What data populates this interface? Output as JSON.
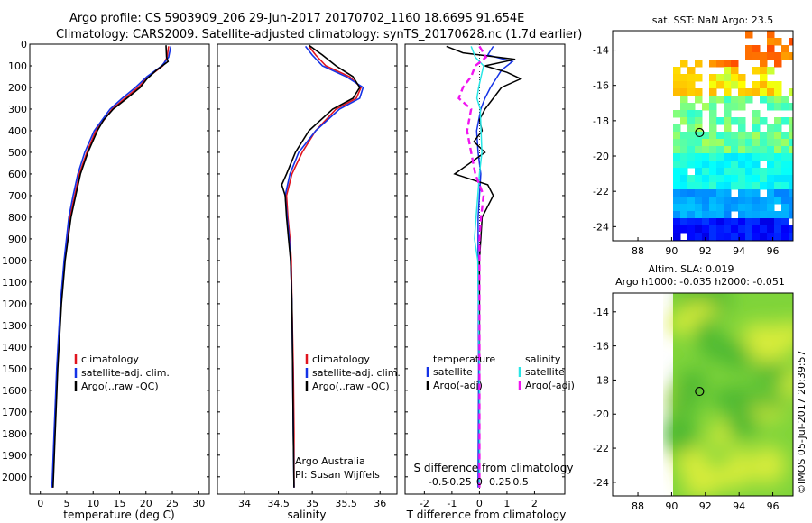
{
  "header": {
    "line1": "Argo profile: CS 5903909_206 29-Jun-2017 20170702_1160 18.669S 91.654E",
    "line2": "Climatology: CARS2009. Satellite-adjusted climatology: synTS_20170628.nc (1.7d earlier)"
  },
  "colors": {
    "red": "#e0141e",
    "blue": "#1432e6",
    "black": "#000000",
    "cyan": "#28e6e6",
    "magenta": "#f014f0"
  },
  "chart_data": [
    {
      "id": "temperature",
      "type": "line",
      "xlabel": "temperature (deg C)",
      "xlim": [
        -2,
        32
      ],
      "xticks": [
        0,
        5,
        10,
        15,
        20,
        25,
        30
      ],
      "ylim": [
        0,
        2080
      ],
      "yticks": [
        0,
        100,
        200,
        300,
        400,
        500,
        600,
        700,
        800,
        900,
        1000,
        1100,
        1200,
        1300,
        1400,
        1500,
        1600,
        1700,
        1800,
        1900,
        2000
      ],
      "legend": [
        "climatology",
        "satellite-adj. clim.",
        "Argo(..raw -QC)"
      ],
      "series": [
        {
          "name": "climatology",
          "color": "red",
          "depth": [
            10,
            60,
            100,
            150,
            200,
            250,
            300,
            400,
            500,
            600,
            700,
            800,
            1000,
            1200,
            1500,
            1800,
            2050
          ],
          "values": [
            24.3,
            24.0,
            23.2,
            20.5,
            18.5,
            16.0,
            13.6,
            10.5,
            8.8,
            7.4,
            6.5,
            5.6,
            4.6,
            3.9,
            3.2,
            2.7,
            2.3
          ]
        },
        {
          "name": "satellite-adj. clim.",
          "color": "blue",
          "depth": [
            10,
            60,
            100,
            150,
            200,
            250,
            300,
            400,
            500,
            600,
            700,
            800,
            1000,
            1200,
            1500,
            1800,
            2050
          ],
          "values": [
            24.7,
            24.3,
            23.0,
            20.2,
            18.0,
            15.5,
            13.2,
            10.2,
            8.4,
            7.1,
            6.2,
            5.4,
            4.5,
            3.8,
            3.1,
            2.6,
            2.2
          ]
        },
        {
          "name": "Argo raw",
          "color": "black",
          "depth": [
            5,
            60,
            80,
            120,
            160,
            200,
            250,
            300,
            350,
            400,
            500,
            600,
            700,
            800,
            1000,
            1200,
            1500,
            1800,
            2050
          ],
          "values": [
            23.8,
            23.9,
            24.2,
            22.0,
            20.2,
            18.9,
            16.4,
            13.8,
            12.0,
            10.8,
            9.0,
            7.6,
            6.7,
            5.8,
            4.7,
            4.0,
            3.3,
            2.8,
            2.4
          ]
        }
      ]
    },
    {
      "id": "salinity",
      "type": "line",
      "xlabel": "salinity",
      "xlim": [
        33.6,
        36.25
      ],
      "xticks": [
        34,
        34.5,
        35,
        35.5,
        36
      ],
      "xticklabels": [
        "34",
        "34.5",
        "35",
        "35.5",
        "36"
      ],
      "ylim": [
        0,
        2080
      ],
      "legend": [
        "climatology",
        "satellite-adj. clim.",
        "Argo(..raw -QC)"
      ],
      "annotations": [
        "Argo Australia",
        "PI: Susan Wijffels"
      ],
      "series": [
        {
          "name": "climatology",
          "color": "red",
          "depth": [
            10,
            50,
            100,
            150,
            200,
            250,
            300,
            400,
            500,
            600,
            700,
            800,
            900,
            1000,
            1200,
            1500,
            1800,
            2050
          ],
          "values": [
            34.95,
            35.05,
            35.2,
            35.55,
            35.72,
            35.65,
            35.35,
            35.05,
            34.85,
            34.7,
            34.62,
            34.64,
            34.67,
            34.69,
            34.7,
            34.72,
            34.73,
            34.73
          ]
        },
        {
          "name": "satellite-adj. clim.",
          "color": "blue",
          "depth": [
            10,
            50,
            100,
            150,
            200,
            250,
            300,
            400,
            500,
            600,
            700,
            800,
            900,
            1000,
            1200,
            1500,
            1800,
            2050
          ],
          "values": [
            34.9,
            35.0,
            35.15,
            35.5,
            35.75,
            35.7,
            35.4,
            35.05,
            34.8,
            34.67,
            34.6,
            34.63,
            34.66,
            34.68,
            34.7,
            34.71,
            34.72,
            34.73
          ]
        },
        {
          "name": "Argo raw",
          "color": "black",
          "depth": [
            5,
            50,
            100,
            150,
            200,
            250,
            300,
            400,
            500,
            600,
            650,
            700,
            800,
            900,
            1000,
            1200,
            1500,
            1800,
            2050
          ],
          "values": [
            34.95,
            35.15,
            35.35,
            35.6,
            35.7,
            35.6,
            35.3,
            34.95,
            34.75,
            34.62,
            34.55,
            34.6,
            34.62,
            34.65,
            34.68,
            34.7,
            34.71,
            34.72,
            34.73
          ]
        }
      ]
    },
    {
      "id": "difference",
      "type": "line",
      "xlabel": "T difference from climatology",
      "xlabel2": "S difference from climatology",
      "xlim": [
        -2.7,
        3.1
      ],
      "xticks": [
        -2,
        -1,
        0,
        1,
        2
      ],
      "xticklabels": [
        "-2",
        "-1",
        "0",
        "1",
        "2"
      ],
      "sticks": [
        -0.5,
        -0.25,
        0,
        0.25,
        0.5
      ],
      "sticklabels": [
        "-0.5",
        "-0.25",
        "0",
        "0.25",
        "0.5"
      ],
      "ylim": [
        0,
        2080
      ],
      "legend_temperature": {
        "title": "temperature",
        "items": [
          "satellite",
          "Argo(-adj)"
        ]
      },
      "legend_salinity": {
        "title": "salinity",
        "items": [
          "satellite",
          "Argo(-adj)"
        ]
      },
      "series": [
        {
          "name": "T satellite",
          "color": "blue",
          "depth": [
            10,
            50,
            80,
            120,
            160,
            200,
            250,
            300,
            400,
            500,
            600,
            700,
            800,
            1000,
            1500,
            2050
          ],
          "values": [
            0.5,
            0.3,
            1.2,
            0.8,
            0.6,
            0.4,
            0.2,
            0.05,
            -0.1,
            -0.05,
            0.05,
            0.0,
            -0.05,
            -0.05,
            -0.03,
            -0.05
          ]
        },
        {
          "name": "T Argo",
          "color": "black",
          "depth": [
            10,
            40,
            70,
            100,
            130,
            160,
            200,
            250,
            300,
            350,
            400,
            450,
            500,
            600,
            650,
            700,
            800,
            1000,
            1500,
            2050
          ],
          "values": [
            -1.2,
            -0.6,
            1.3,
            0.2,
            1.0,
            1.5,
            0.8,
            0.5,
            0.2,
            0.0,
            0.1,
            -0.2,
            0.2,
            -0.9,
            0.3,
            0.5,
            0.1,
            0.0,
            0.0,
            0.0
          ]
        },
        {
          "name": "S satellite",
          "color": "cyan",
          "depth": [
            10,
            60,
            100,
            150,
            200,
            250,
            300,
            400,
            500,
            600,
            700,
            800,
            900,
            1000,
            1500,
            2050
          ],
          "values": [
            -0.1,
            -0.05,
            0.05,
            0.02,
            -0.01,
            -0.03,
            0.01,
            0.02,
            0.03,
            0.0,
            -0.02,
            -0.04,
            -0.06,
            -0.02,
            0.0,
            0.0
          ]
        },
        {
          "name": "S Argo",
          "color": "magenta",
          "depth": [
            10,
            60,
            100,
            150,
            200,
            250,
            300,
            400,
            500,
            600,
            700,
            800,
            900,
            1000,
            1200,
            1500,
            1800,
            2050
          ],
          "values": [
            0.0,
            0.08,
            -0.05,
            -0.1,
            -0.2,
            -0.25,
            -0.1,
            -0.15,
            -0.1,
            -0.05,
            0.05,
            0.02,
            0.0,
            0.0,
            0.0,
            0.0,
            0.0,
            0.0
          ]
        }
      ]
    },
    {
      "id": "sst-map",
      "type": "heatmap",
      "title": "sat. SST: NaN Argo: 23.5",
      "xticks": [
        88,
        90,
        92,
        94,
        96
      ],
      "yticks": [
        -14,
        -16,
        -18,
        -20,
        -22,
        -24
      ],
      "xlim": [
        86.5,
        97.2
      ],
      "ylim": [
        -24.8,
        -12.9
      ],
      "argo_position": [
        91.654,
        -18.669
      ]
    },
    {
      "id": "sla-map",
      "type": "heatmap",
      "title": "Altim. SLA: 0.019",
      "subtitle": "Argo h1000: -0.035 h2000: -0.051",
      "xticks": [
        88,
        90,
        92,
        94,
        96
      ],
      "yticks": [
        -14,
        -16,
        -18,
        -20,
        -22,
        -24
      ],
      "xlim": [
        86.5,
        97.2
      ],
      "ylim": [
        -24.8,
        -12.9
      ],
      "argo_position": [
        91.654,
        -18.669
      ]
    }
  ],
  "credit": "©IMOS 05-Jul-2017 20:39:57"
}
